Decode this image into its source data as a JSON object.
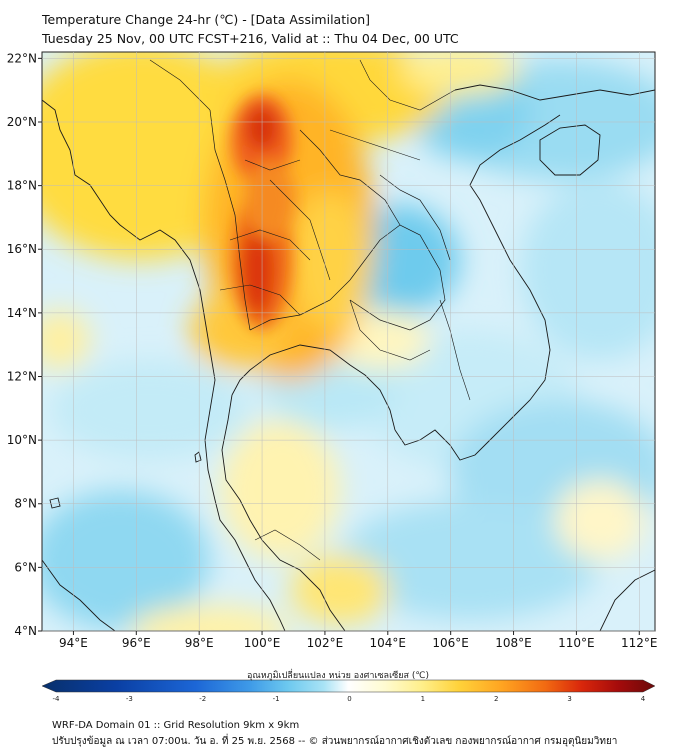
{
  "header": {
    "title": "Temperature Change 24-hr (℃) - [Data Assimilation]",
    "subtitle": "Tuesday 25 Nov, 00 UTC FCST+216, Valid at :: Thu 04 Dec, 00 UTC"
  },
  "axes": {
    "lat_labels": [
      "22°N",
      "20°N",
      "18°N",
      "16°N",
      "14°N",
      "12°N",
      "10°N",
      "8°N",
      "6°N",
      "4°N"
    ],
    "lat_values": [
      22,
      20,
      18,
      16,
      14,
      12,
      10,
      8,
      6,
      4
    ],
    "lon_labels": [
      "94°E",
      "96°E",
      "98°E",
      "100°E",
      "102°E",
      "104°E",
      "106°E",
      "108°E",
      "110°E",
      "112°E"
    ],
    "lon_values": [
      94,
      96,
      98,
      100,
      102,
      104,
      106,
      108,
      110,
      112
    ],
    "lat_range": [
      4,
      22.2
    ],
    "lon_range": [
      93,
      112.5
    ]
  },
  "colorbar": {
    "label": "อุณหภูมิเปลี่ยนแปลง หน่วย องศาเซลเซียส (℃)",
    "ticks": [
      "-4",
      "-3",
      "-2",
      "-1",
      "0",
      "1",
      "2",
      "3",
      "4"
    ],
    "tick_values": [
      -4,
      -3,
      -2,
      -1,
      0,
      1,
      2,
      3,
      4
    ],
    "min": -4,
    "max": 4,
    "colors": [
      "#08306b",
      "#0a3fa3",
      "#1c66d6",
      "#3f9be8",
      "#6cc8ef",
      "#a9e3f5",
      "#e6f7fb",
      "#ffffff",
      "#fffbd0",
      "#ffef8a",
      "#ffd23a",
      "#ffa421",
      "#f26b12",
      "#d9270b",
      "#a50b0b",
      "#6b0a0a"
    ]
  },
  "footer": {
    "line1": "WRF-DA Domain 01 :: Grid Resolution 9km x 9km",
    "line2": "ปรับปรุงข้อมูล ณ เวลา 07:00น. วัน อ. ที่ 25 พ.ย. 2568 -- © ส่วนพยากรณ์อากาศเชิงตัวเลข กองพยากรณ์อากาศ กรมอุตุนิยมวิทยา"
  }
}
